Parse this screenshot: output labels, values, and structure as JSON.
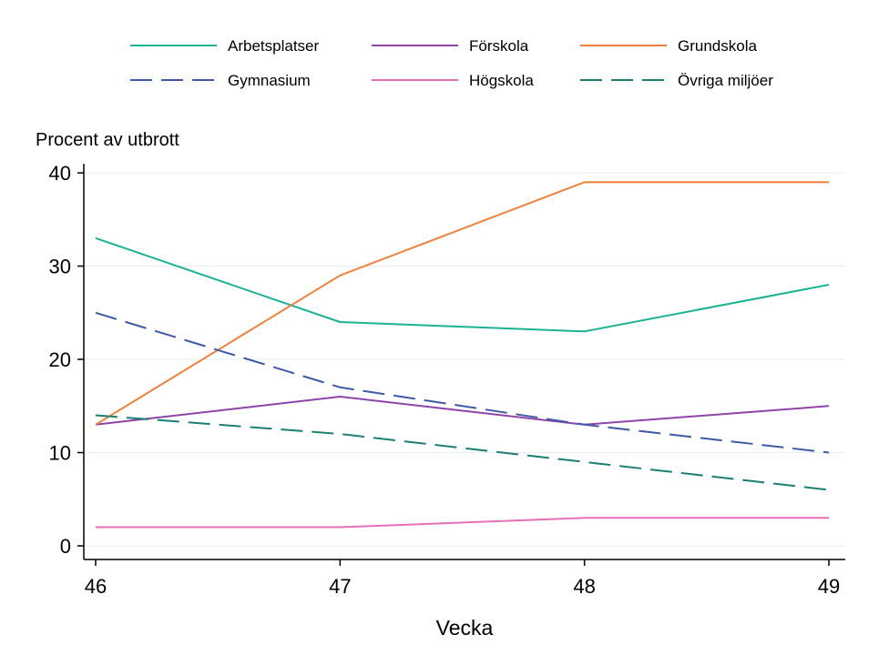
{
  "chart_data": {
    "type": "line",
    "title": "",
    "xlabel": "Vecka",
    "ylabel": "Procent av utbrott",
    "x": [
      46,
      47,
      48,
      49
    ],
    "xticks": [
      "46",
      "47",
      "48",
      "49"
    ],
    "yticks": [
      "0",
      "10",
      "20",
      "30",
      "40"
    ],
    "ylim": [
      0,
      40
    ],
    "grid": true,
    "legend_position": "top",
    "series": [
      {
        "name": "Arbetsplatser",
        "values": [
          33,
          24,
          23,
          28
        ],
        "color": "#1ab394",
        "dash": "solid"
      },
      {
        "name": "Förskola",
        "values": [
          13,
          16,
          13,
          15
        ],
        "color": "#8e44a8",
        "dash": "solid"
      },
      {
        "name": "Grundskola",
        "values": [
          13,
          29,
          39,
          39
        ],
        "color": "#f0813a",
        "dash": "solid"
      },
      {
        "name": "Gymnasium",
        "values": [
          25,
          17,
          13,
          10
        ],
        "color": "#3c5aa8",
        "dash": "dashed"
      },
      {
        "name": "Högskola",
        "values": [
          2,
          2,
          3,
          3
        ],
        "color": "#e66fb8",
        "dash": "solid"
      },
      {
        "name": "Övriga miljöer",
        "values": [
          14,
          12,
          9,
          6
        ],
        "color": "#1a7f74",
        "dash": "dashed"
      }
    ]
  }
}
